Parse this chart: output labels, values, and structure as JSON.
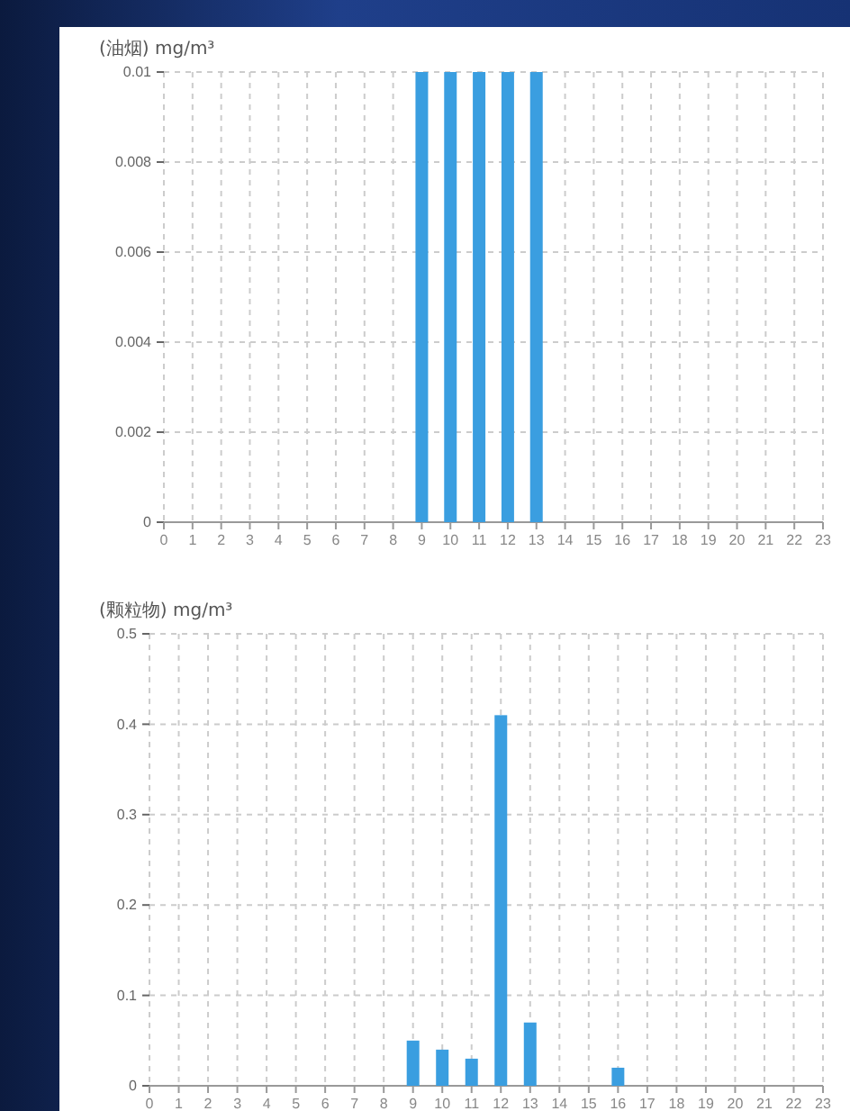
{
  "chart_data": [
    {
      "type": "bar",
      "ylabel": "(油烟) mg/m³",
      "x": [
        9,
        10,
        11,
        12,
        13
      ],
      "values": [
        0.01,
        0.01,
        0.01,
        0.01,
        0.01
      ],
      "color": "#3a9ee0",
      "xlim": [
        0,
        23
      ],
      "xticks": [
        0,
        1,
        2,
        3,
        4,
        5,
        6,
        7,
        8,
        9,
        10,
        11,
        12,
        13,
        14,
        15,
        16,
        17,
        18,
        19,
        20,
        21,
        22,
        23
      ],
      "ylim": [
        0,
        0.01
      ],
      "yticks": [
        0,
        0.002,
        0.004,
        0.006,
        0.008,
        0.01
      ],
      "grid": true
    },
    {
      "type": "bar",
      "ylabel": "(颗粒物) mg/m³",
      "x": [
        9,
        10,
        11,
        12,
        13,
        16
      ],
      "values": [
        0.05,
        0.04,
        0.03,
        0.41,
        0.07,
        0.02
      ],
      "color": "#3a9ee0",
      "xlim": [
        0,
        23
      ],
      "xticks": [
        0,
        1,
        2,
        3,
        4,
        5,
        6,
        7,
        8,
        9,
        10,
        11,
        12,
        13,
        14,
        15,
        16,
        17,
        18,
        19,
        20,
        21,
        22,
        23
      ],
      "ylim": [
        0,
        0.5
      ],
      "yticks": [
        0,
        0.1,
        0.2,
        0.3,
        0.4,
        0.5
      ],
      "grid": true
    }
  ]
}
